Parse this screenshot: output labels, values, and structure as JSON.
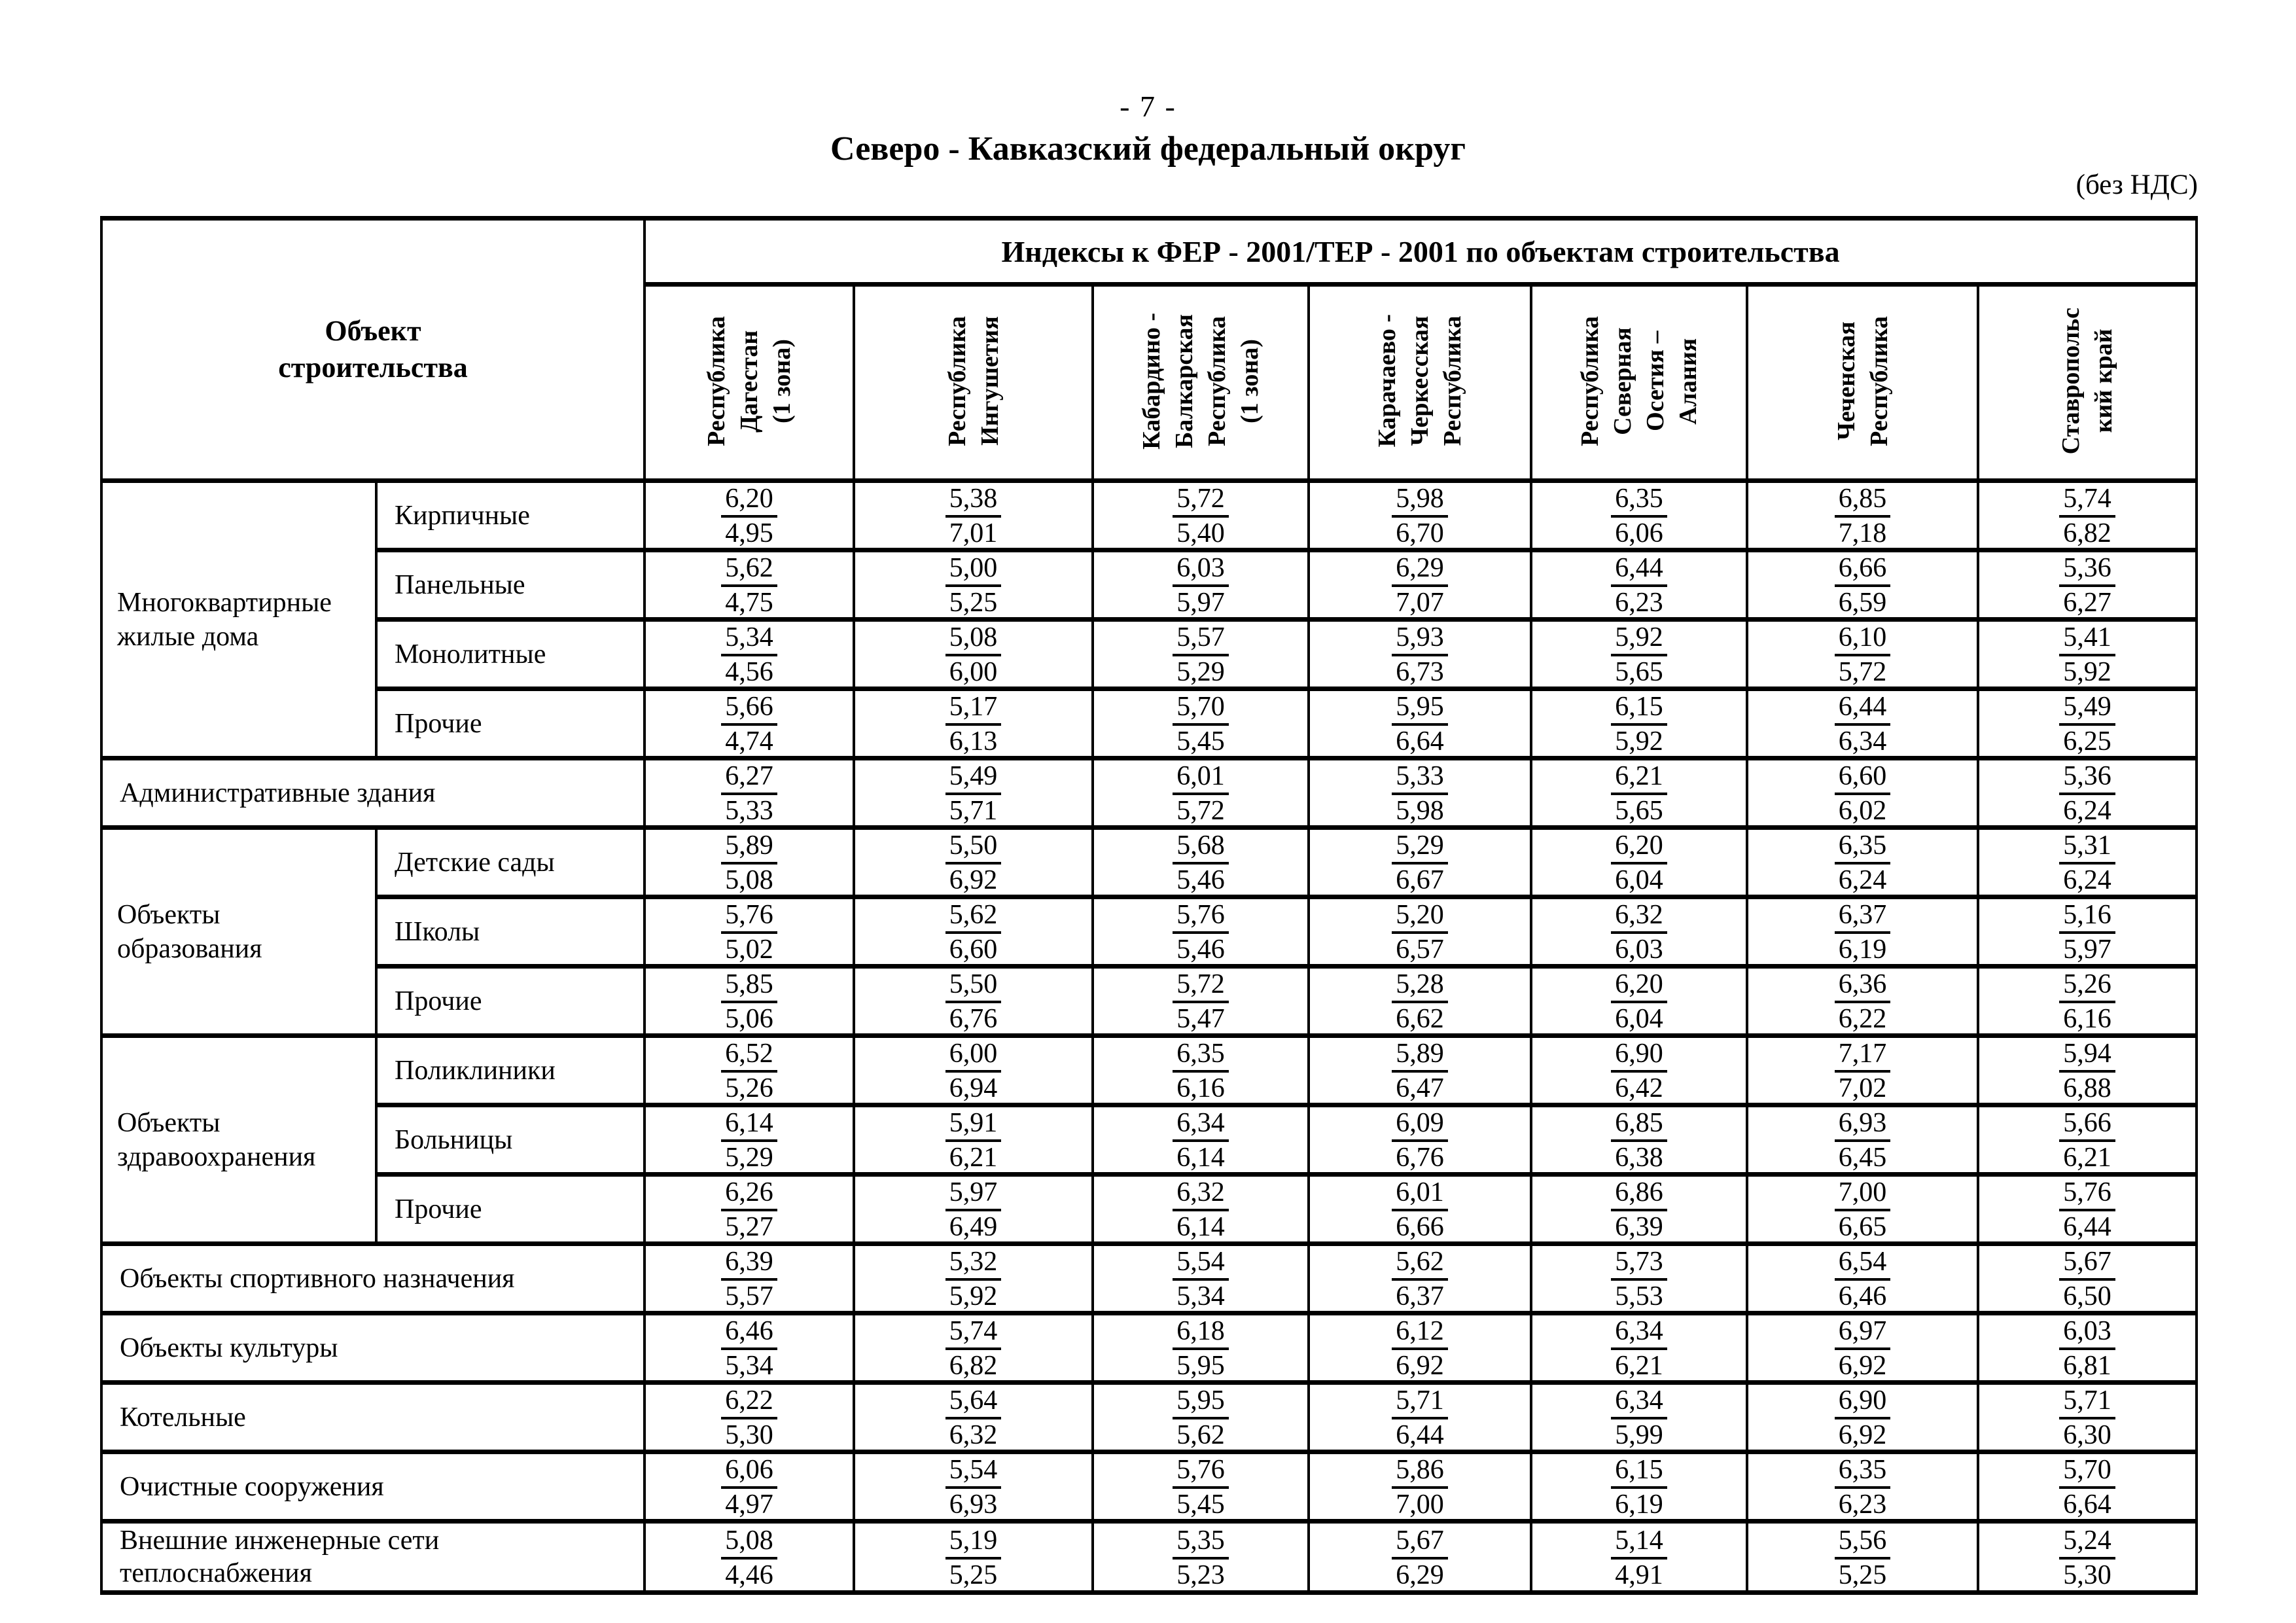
{
  "page": {
    "page_number": "- 7 -",
    "title": "Северо - Кавказский федеральный округ",
    "vat_note": "(без НДС)"
  },
  "table": {
    "object_header": "Объект\nстроительства",
    "index_header": "Индексы к ФЕР - 2001/ТЕР - 2001 по объектам строительства",
    "regions": [
      "Республика\nДагестан\n(1 зона)",
      "Республика\nИнгушетия",
      "Кабардино -\nБалкарская\nРеспублика\n(1 зона)",
      "Карачаево -\nЧеркесская\nРеспублика",
      "Республика\nСеверная\nОсетия –\nАлания",
      "Чеченская\nРеспублика",
      "Ставропольс\nкий край"
    ],
    "rows": [
      {
        "group": "Многоквартирные\nжилые дома",
        "rowspan": 4,
        "label": "Кирпичные",
        "values": [
          [
            "6,20",
            "4,95"
          ],
          [
            "5,38",
            "7,01"
          ],
          [
            "5,72",
            "5,40"
          ],
          [
            "5,98",
            "6,70"
          ],
          [
            "6,35",
            "6,06"
          ],
          [
            "6,85",
            "7,18"
          ],
          [
            "5,74",
            "6,82"
          ]
        ]
      },
      {
        "label": "Панельные",
        "values": [
          [
            "5,62",
            "4,75"
          ],
          [
            "5,00",
            "5,25"
          ],
          [
            "6,03",
            "5,97"
          ],
          [
            "6,29",
            "7,07"
          ],
          [
            "6,44",
            "6,23"
          ],
          [
            "6,66",
            "6,59"
          ],
          [
            "5,36",
            "6,27"
          ]
        ]
      },
      {
        "label": "Монолитные",
        "values": [
          [
            "5,34",
            "4,56"
          ],
          [
            "5,08",
            "6,00"
          ],
          [
            "5,57",
            "5,29"
          ],
          [
            "5,93",
            "6,73"
          ],
          [
            "5,92",
            "5,65"
          ],
          [
            "6,10",
            "5,72"
          ],
          [
            "5,41",
            "5,92"
          ]
        ]
      },
      {
        "label": "Прочие",
        "values": [
          [
            "5,66",
            "4,74"
          ],
          [
            "5,17",
            "6,13"
          ],
          [
            "5,70",
            "5,45"
          ],
          [
            "5,95",
            "6,64"
          ],
          [
            "6,15",
            "5,92"
          ],
          [
            "6,44",
            "6,34"
          ],
          [
            "5,49",
            "6,25"
          ]
        ]
      },
      {
        "label": "Административные здания",
        "full": true,
        "values": [
          [
            "6,27",
            "5,33"
          ],
          [
            "5,49",
            "5,71"
          ],
          [
            "6,01",
            "5,72"
          ],
          [
            "5,33",
            "5,98"
          ],
          [
            "6,21",
            "5,65"
          ],
          [
            "6,60",
            "6,02"
          ],
          [
            "5,36",
            "6,24"
          ]
        ]
      },
      {
        "group": "Объекты\nобразования",
        "rowspan": 3,
        "label": "Детские сады",
        "values": [
          [
            "5,89",
            "5,08"
          ],
          [
            "5,50",
            "6,92"
          ],
          [
            "5,68",
            "5,46"
          ],
          [
            "5,29",
            "6,67"
          ],
          [
            "6,20",
            "6,04"
          ],
          [
            "6,35",
            "6,24"
          ],
          [
            "5,31",
            "6,24"
          ]
        ]
      },
      {
        "label": "Школы",
        "values": [
          [
            "5,76",
            "5,02"
          ],
          [
            "5,62",
            "6,60"
          ],
          [
            "5,76",
            "5,46"
          ],
          [
            "5,20",
            "6,57"
          ],
          [
            "6,32",
            "6,03"
          ],
          [
            "6,37",
            "6,19"
          ],
          [
            "5,16",
            "5,97"
          ]
        ]
      },
      {
        "label": "Прочие",
        "values": [
          [
            "5,85",
            "5,06"
          ],
          [
            "5,50",
            "6,76"
          ],
          [
            "5,72",
            "5,47"
          ],
          [
            "5,28",
            "6,62"
          ],
          [
            "6,20",
            "6,04"
          ],
          [
            "6,36",
            "6,22"
          ],
          [
            "5,26",
            "6,16"
          ]
        ]
      },
      {
        "group": "Объекты\nздравоохранения",
        "rowspan": 3,
        "label": "Поликлиники",
        "values": [
          [
            "6,52",
            "5,26"
          ],
          [
            "6,00",
            "6,94"
          ],
          [
            "6,35",
            "6,16"
          ],
          [
            "5,89",
            "6,47"
          ],
          [
            "6,90",
            "6,42"
          ],
          [
            "7,17",
            "7,02"
          ],
          [
            "5,94",
            "6,88"
          ]
        ]
      },
      {
        "label": "Больницы",
        "values": [
          [
            "6,14",
            "5,29"
          ],
          [
            "5,91",
            "6,21"
          ],
          [
            "6,34",
            "6,14"
          ],
          [
            "6,09",
            "6,76"
          ],
          [
            "6,85",
            "6,38"
          ],
          [
            "6,93",
            "6,45"
          ],
          [
            "5,66",
            "6,21"
          ]
        ]
      },
      {
        "label": "Прочие",
        "values": [
          [
            "6,26",
            "5,27"
          ],
          [
            "5,97",
            "6,49"
          ],
          [
            "6,32",
            "6,14"
          ],
          [
            "6,01",
            "6,66"
          ],
          [
            "6,86",
            "6,39"
          ],
          [
            "7,00",
            "6,65"
          ],
          [
            "5,76",
            "6,44"
          ]
        ]
      },
      {
        "label": "Объекты спортивного назначения",
        "full": true,
        "values": [
          [
            "6,39",
            "5,57"
          ],
          [
            "5,32",
            "5,92"
          ],
          [
            "5,54",
            "5,34"
          ],
          [
            "5,62",
            "6,37"
          ],
          [
            "5,73",
            "5,53"
          ],
          [
            "6,54",
            "6,46"
          ],
          [
            "5,67",
            "6,50"
          ]
        ]
      },
      {
        "label": "Объекты культуры",
        "full": true,
        "values": [
          [
            "6,46",
            "5,34"
          ],
          [
            "5,74",
            "6,82"
          ],
          [
            "6,18",
            "5,95"
          ],
          [
            "6,12",
            "6,92"
          ],
          [
            "6,34",
            "6,21"
          ],
          [
            "6,97",
            "6,92"
          ],
          [
            "6,03",
            "6,81"
          ]
        ]
      },
      {
        "label": "Котельные",
        "full": true,
        "values": [
          [
            "6,22",
            "5,30"
          ],
          [
            "5,64",
            "6,32"
          ],
          [
            "5,95",
            "5,62"
          ],
          [
            "5,71",
            "6,44"
          ],
          [
            "6,34",
            "5,99"
          ],
          [
            "6,90",
            "6,92"
          ],
          [
            "5,71",
            "6,30"
          ]
        ]
      },
      {
        "label": "Очистные сооружения",
        "full": true,
        "values": [
          [
            "6,06",
            "4,97"
          ],
          [
            "5,54",
            "6,93"
          ],
          [
            "5,76",
            "5,45"
          ],
          [
            "5,86",
            "7,00"
          ],
          [
            "6,15",
            "6,19"
          ],
          [
            "6,35",
            "6,23"
          ],
          [
            "5,70",
            "6,64"
          ]
        ]
      },
      {
        "label": "Внешние инженерные сети\nтеплоснабжения",
        "full": true,
        "values": [
          [
            "5,08",
            "4,46"
          ],
          [
            "5,19",
            "5,25"
          ],
          [
            "5,35",
            "5,23"
          ],
          [
            "5,67",
            "6,29"
          ],
          [
            "5,14",
            "4,91"
          ],
          [
            "5,56",
            "5,25"
          ],
          [
            "5,24",
            "5,30"
          ]
        ]
      }
    ]
  }
}
